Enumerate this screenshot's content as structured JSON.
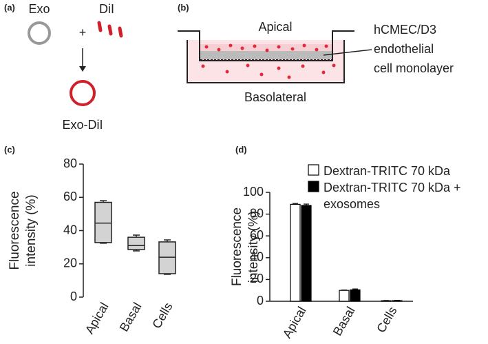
{
  "panel_labels": [
    "(a)",
    "(b)",
    "(c)",
    "(d)"
  ],
  "diagram_a": {
    "exo": "Exo",
    "dil": "DiI",
    "plus": "+",
    "result": "Exo-DiI"
  },
  "diagram_b": {
    "apical": "Apical",
    "basolateral": "Basolateral",
    "cell_label": [
      "hCMEC/D3",
      "endothelial",
      "cell monolayer"
    ]
  },
  "chart_data": [
    {
      "type": "box",
      "y_label": [
        "Fluorescence",
        "intensity (%)"
      ],
      "categories": [
        "Apical",
        "Basal",
        "Cells"
      ],
      "boxes": [
        {
          "min": 32.4,
          "q1": 32.8,
          "median": 44.5,
          "q3": 57,
          "max": 58
        },
        {
          "min": 27.8,
          "q1": 28.6,
          "median": 31,
          "q3": 36,
          "max": 37.3
        },
        {
          "min": 13.7,
          "q1": 14.1,
          "median": 24,
          "q3": 33.2,
          "max": 34.4
        }
      ],
      "color": "#d3d3d3",
      "ylim": [
        0,
        80
      ],
      "yticks": [
        0,
        20,
        40,
        60,
        80
      ]
    },
    {
      "type": "bar",
      "y_label": [
        "Fluorescence",
        "intensity (%)"
      ],
      "categories": [
        "Apical",
        "Basal",
        "Cells"
      ],
      "series": [
        {
          "name": "Dextran-TRITC 70 kDa",
          "color": "#ffffff",
          "values": [
            89,
            10,
            0.5
          ],
          "errors": [
            0.8,
            0.3,
            0.2
          ]
        },
        {
          "name": "Dextran-TRITC 70 kDa + exosomes",
          "color": "#000000",
          "values": [
            88,
            10.5,
            0.6
          ],
          "errors": [
            1.2,
            0.8,
            0.3
          ]
        }
      ],
      "ylim": [
        0,
        100
      ],
      "yticks": [
        0,
        20,
        40,
        60,
        80,
        100
      ],
      "legend": "top"
    }
  ]
}
